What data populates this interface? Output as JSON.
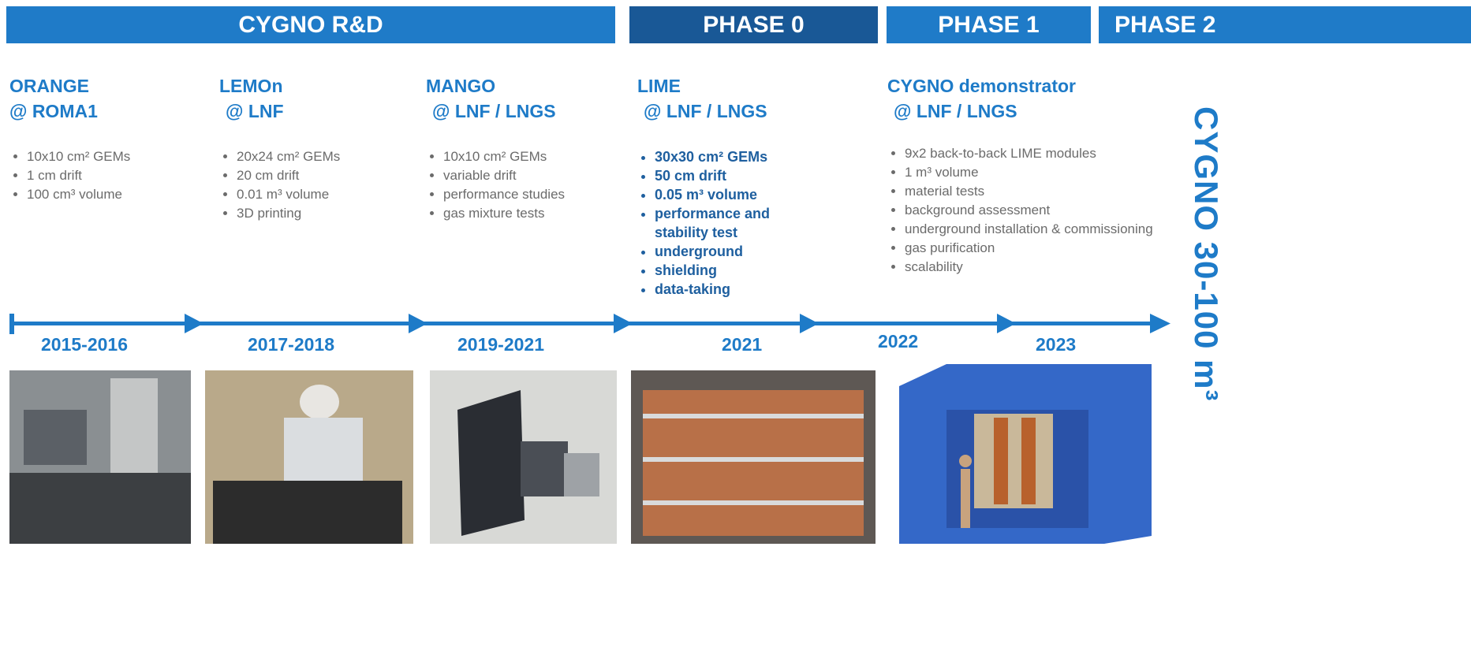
{
  "phases": [
    {
      "label": "CYGNO R&D"
    },
    {
      "label": "PHASE 0"
    },
    {
      "label": "PHASE 1"
    },
    {
      "label": "PHASE 2"
    }
  ],
  "stages": [
    {
      "title": "ORANGE",
      "location": "@ ROMA1",
      "items": [
        "10x10 cm² GEMs",
        "1 cm drift",
        "100 cm³ volume"
      ]
    },
    {
      "title": "LEMOn",
      "location": "@ LNF",
      "items": [
        "20x24 cm² GEMs",
        "20 cm drift",
        "0.01 m³ volume",
        "3D printing"
      ]
    },
    {
      "title": "MANGO",
      "location": "@ LNF / LNGS",
      "items": [
        "10x10 cm² GEMs",
        "variable drift",
        "performance studies",
        "gas mixture tests"
      ]
    },
    {
      "title": "LIME",
      "location": "@ LNF / LNGS",
      "items": [
        "30x30 cm² GEMs",
        "50 cm drift",
        "0.05 m³ volume",
        "performance and stability test",
        "underground",
        "shielding",
        "data-taking"
      ]
    },
    {
      "title": "CYGNO demonstrator",
      "location": "@ LNF / LNGS",
      "items": [
        "9x2 back-to-back LIME modules",
        "1 m³ volume",
        "material tests",
        "background assessment",
        "underground installation & commissioning",
        "gas purification",
        "scalability"
      ]
    }
  ],
  "years": [
    "2015-2016",
    "2017-2018",
    "2019-2021",
    "2021",
    "2022",
    "2023"
  ],
  "side_label": "CYGNO 30-100 m³"
}
